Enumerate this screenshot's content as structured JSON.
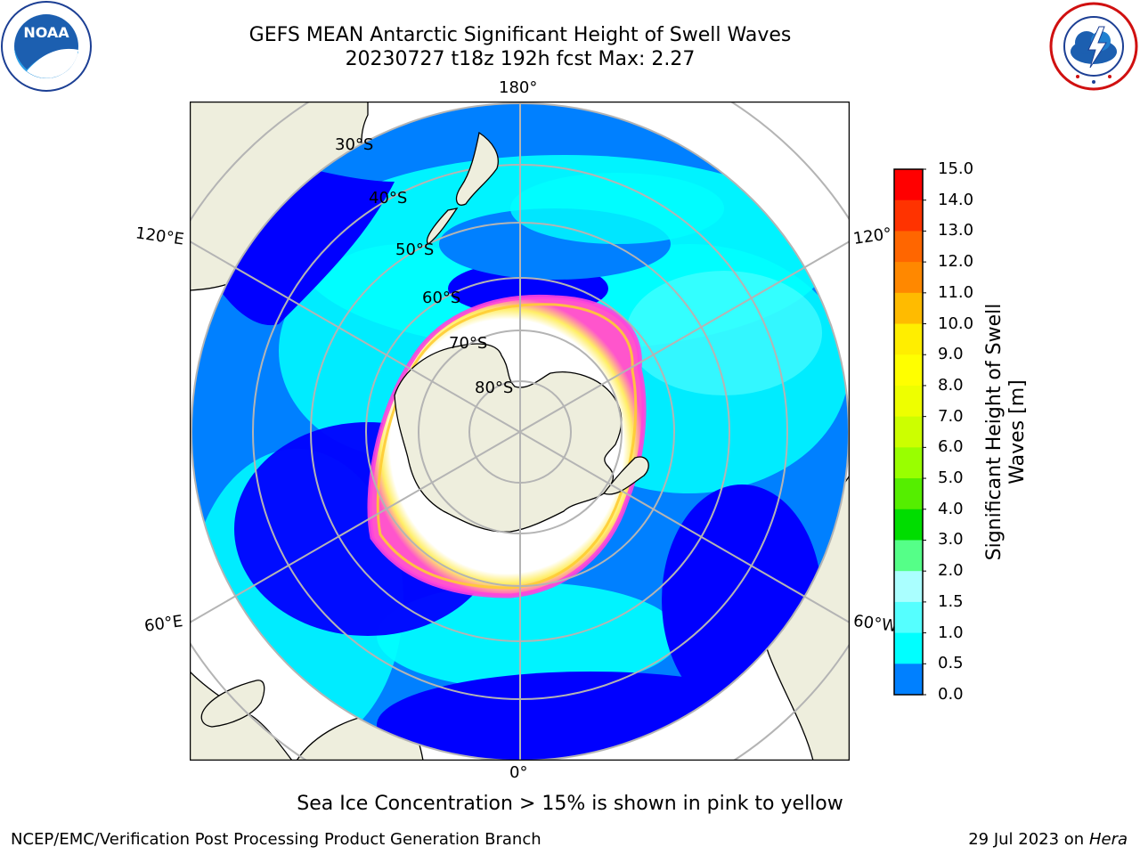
{
  "title_line1": "GEFS MEAN Antarctic Significant Height of Swell Waves",
  "title_line2": "20230727 t18z 192h fcst   Max: 2.27",
  "logos": {
    "noaa": {
      "text": "NOAA",
      "icon": "noaa-logo"
    },
    "nws": {
      "icon": "national-weather-service-logo"
    }
  },
  "map": {
    "projection": "south-polar-stereographic",
    "lon_labels": {
      "top": "180°",
      "bottom": "0°",
      "left_upper": "120°E",
      "left_lower": "60°E",
      "right_upper": "120°",
      "right_lower": "60°W"
    },
    "lat_labels": [
      "30°S",
      "40°S",
      "50°S",
      "60°S",
      "70°S",
      "80°S"
    ],
    "colors": {
      "land": "#eeeedd",
      "ocean_deep": "#0000ff",
      "ocean_mid": "#0080ff",
      "ocean_light": "#00ffff",
      "ice_edge": [
        "#ff66cc",
        "#ffee00"
      ],
      "grid": "#b0b0b0"
    }
  },
  "colorbar": {
    "title_line1": "Significant Height of Swell",
    "title_line2": "Waves [m]",
    "ticks": [
      "15.0",
      "14.0",
      "13.0",
      "12.0",
      "11.0",
      "10.0",
      "9.0",
      "8.0",
      "7.0",
      "6.0",
      "5.0",
      "4.0",
      "3.0",
      "2.0",
      "1.5",
      "1.0",
      "0.5",
      "0.0"
    ],
    "colors_top_to_bottom": [
      "#ff0000",
      "#ff3300",
      "#ff6600",
      "#ff8800",
      "#ffbb00",
      "#ffee00",
      "#ffff00",
      "#eeff00",
      "#ccff00",
      "#99ff00",
      "#55ee00",
      "#00dd00",
      "#55ff88",
      "#aaffff",
      "#55ffff",
      "#00ffff",
      "#0080ff",
      "#0000ff"
    ]
  },
  "note": "Sea Ice Concentration > 15% is shown in pink to yellow",
  "footer": {
    "left": "NCEP/EMC/Verification Post Processing Product Generation Branch",
    "right_date": "29 Jul 2023 on ",
    "right_host": "Hera"
  }
}
